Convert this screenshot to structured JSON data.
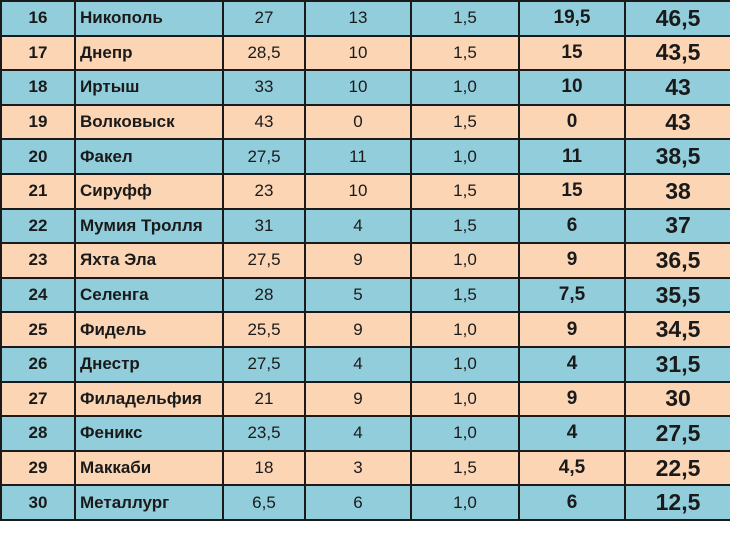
{
  "table": {
    "row_colors": {
      "odd": "#92cddc",
      "even": "#fcd5b4"
    },
    "rows": [
      {
        "rank": "16",
        "team": "Никополь",
        "a": "27",
        "b": "13",
        "c": "1,5",
        "d": "19,5",
        "total": "46,5"
      },
      {
        "rank": "17",
        "team": "Днепр",
        "a": "28,5",
        "b": "10",
        "c": "1,5",
        "d": "15",
        "total": "43,5"
      },
      {
        "rank": "18",
        "team": "Иртыш",
        "a": "33",
        "b": "10",
        "c": "1,0",
        "d": "10",
        "total": "43"
      },
      {
        "rank": "19",
        "team": "Волковыск",
        "a": "43",
        "b": "0",
        "c": "1,5",
        "d": "0",
        "total": "43"
      },
      {
        "rank": "20",
        "team": "Факел",
        "a": "27,5",
        "b": "11",
        "c": "1,0",
        "d": "11",
        "total": "38,5"
      },
      {
        "rank": "21",
        "team": "Сируфф",
        "a": "23",
        "b": "10",
        "c": "1,5",
        "d": "15",
        "total": "38"
      },
      {
        "rank": "22",
        "team": "Мумия Тролля",
        "a": "31",
        "b": "4",
        "c": "1,5",
        "d": "6",
        "total": "37"
      },
      {
        "rank": "23",
        "team": "Яхта Эла",
        "a": "27,5",
        "b": "9",
        "c": "1,0",
        "d": "9",
        "total": "36,5"
      },
      {
        "rank": "24",
        "team": "Селенга",
        "a": "28",
        "b": "5",
        "c": "1,5",
        "d": "7,5",
        "total": "35,5"
      },
      {
        "rank": "25",
        "team": "Фидель",
        "a": "25,5",
        "b": "9",
        "c": "1,0",
        "d": "9",
        "total": "34,5"
      },
      {
        "rank": "26",
        "team": "Днестр",
        "a": "27,5",
        "b": "4",
        "c": "1,0",
        "d": "4",
        "total": "31,5"
      },
      {
        "rank": "27",
        "team": "Филадельфия",
        "a": "21",
        "b": "9",
        "c": "1,0",
        "d": "9",
        "total": "30"
      },
      {
        "rank": "28",
        "team": "Феникс",
        "a": "23,5",
        "b": "4",
        "c": "1,0",
        "d": "4",
        "total": "27,5"
      },
      {
        "rank": "29",
        "team": "Маккаби",
        "a": "18",
        "b": "3",
        "c": "1,5",
        "d": "4,5",
        "total": "22,5"
      },
      {
        "rank": "30",
        "team": "Металлург",
        "a": "6,5",
        "b": "6",
        "c": "1,0",
        "d": "6",
        "total": "12,5"
      }
    ]
  }
}
